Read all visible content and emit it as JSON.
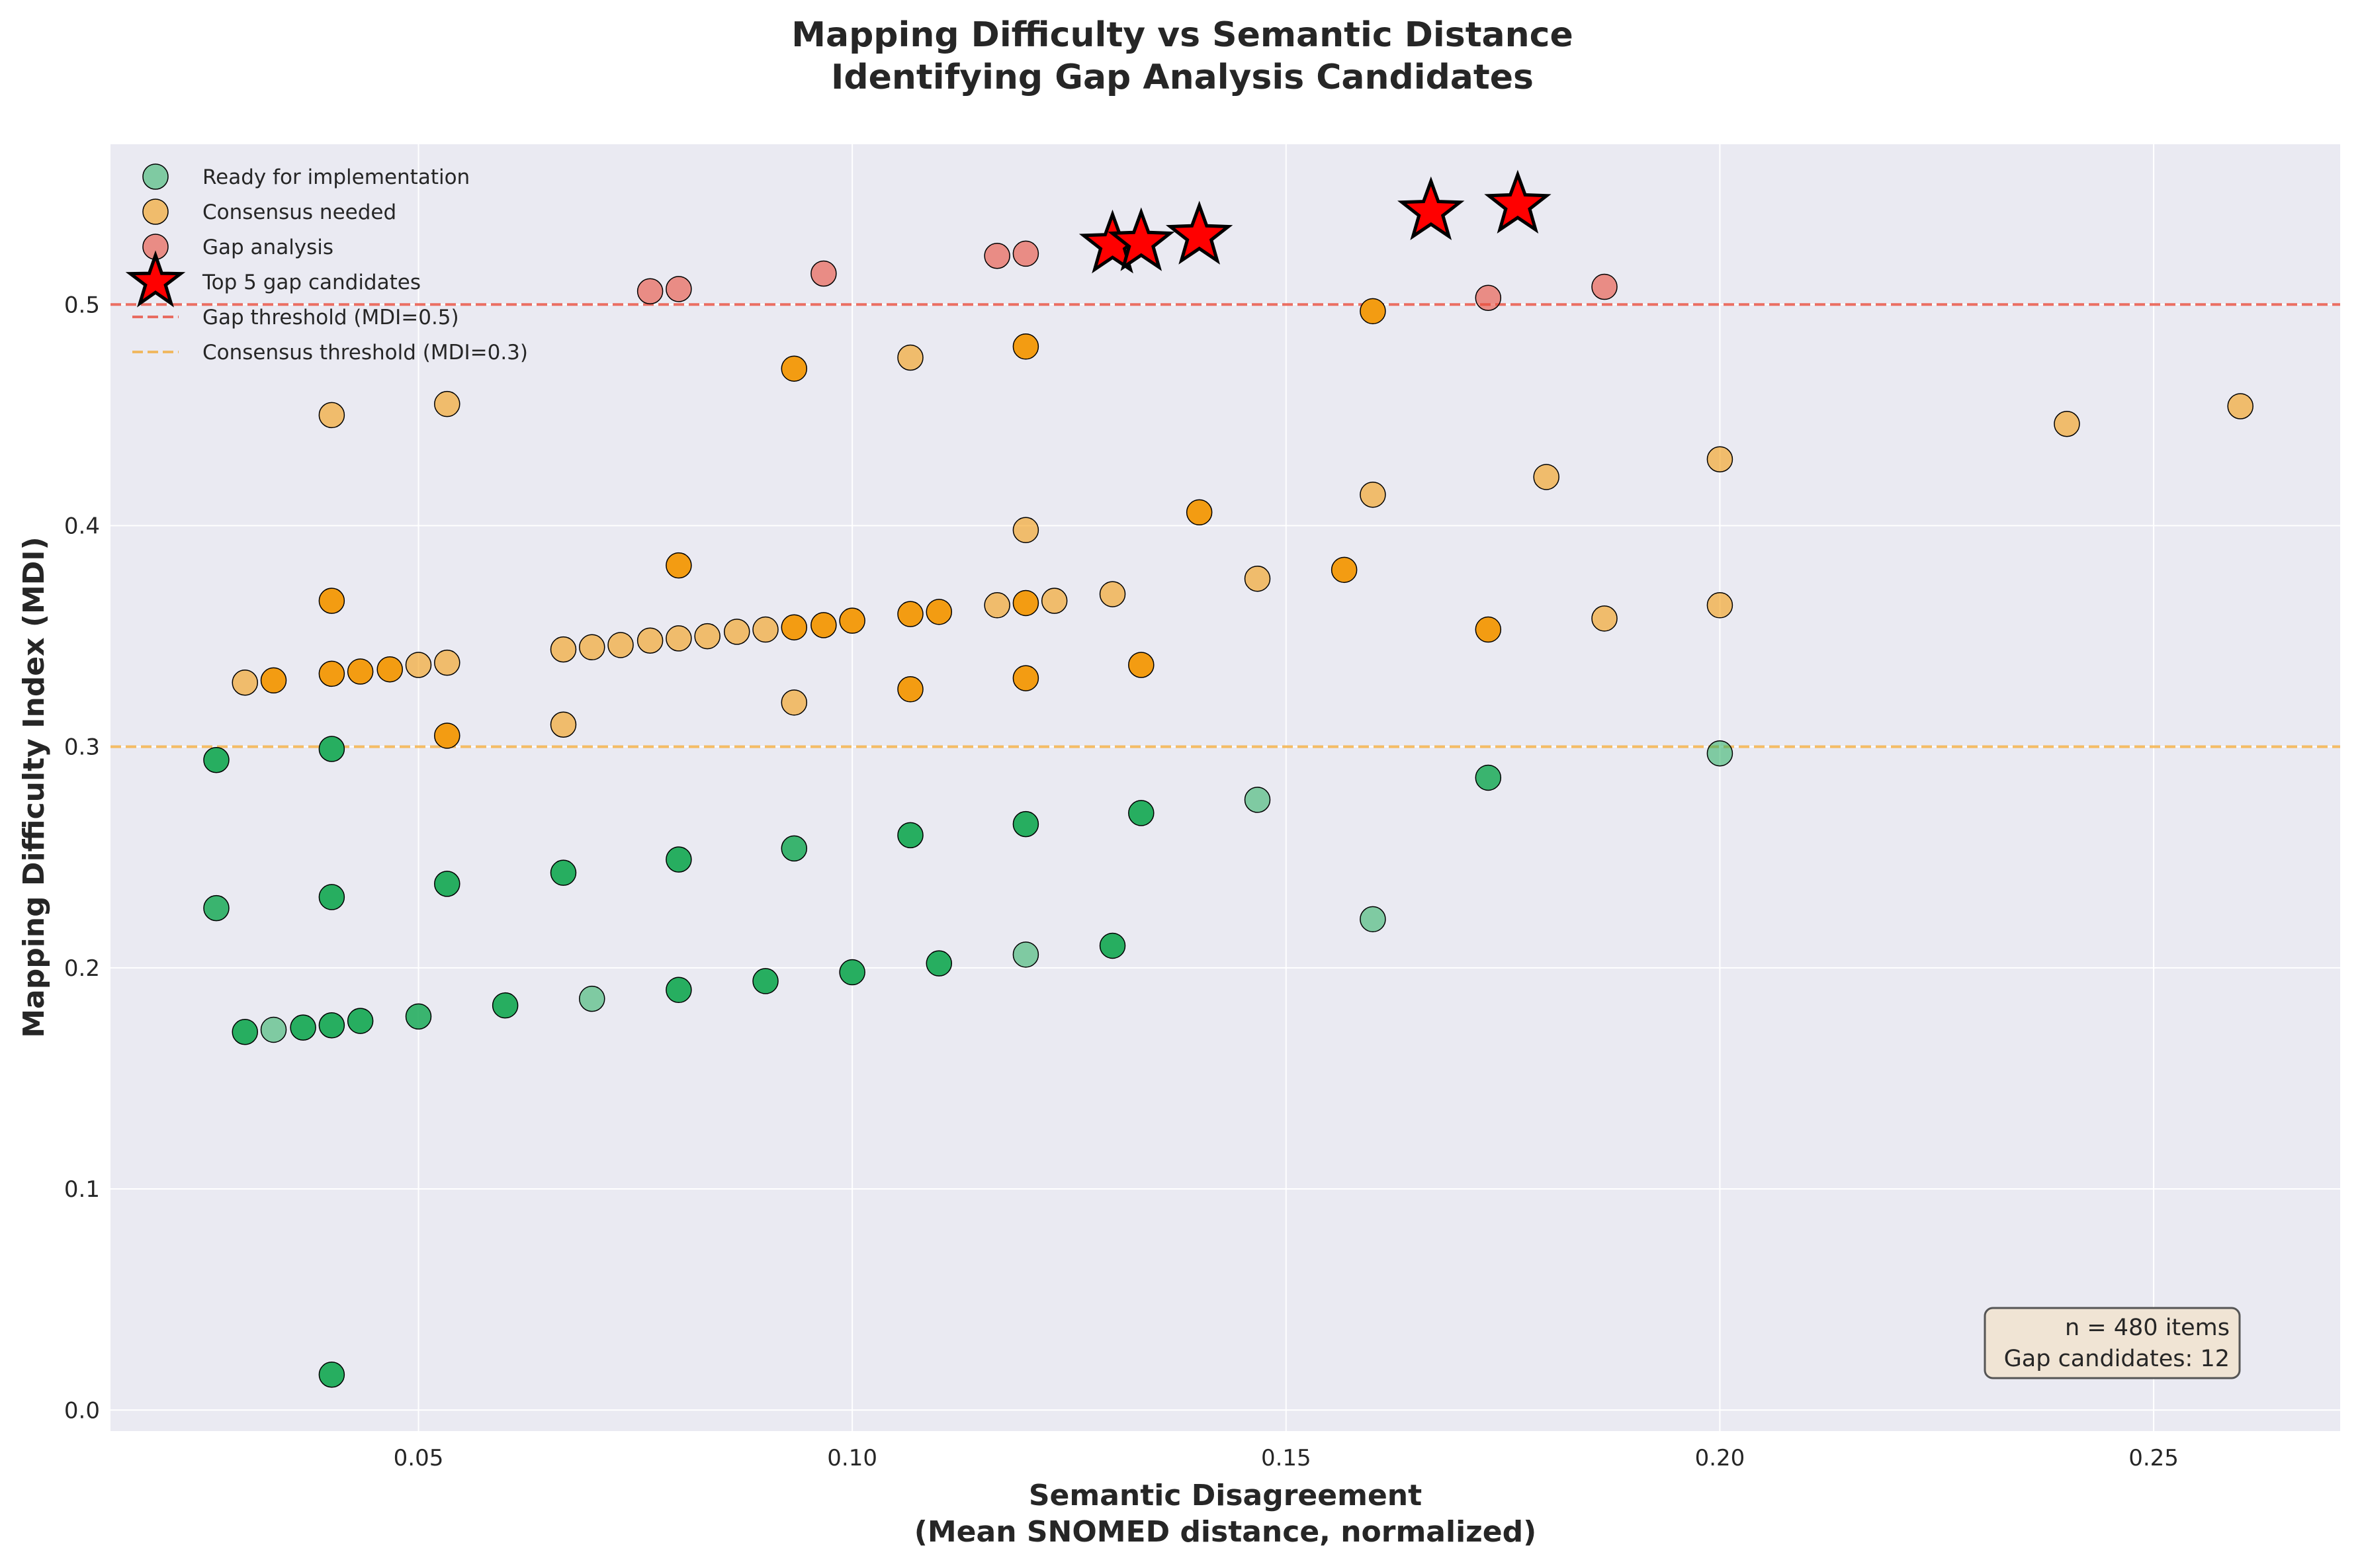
{
  "chart_data": {
    "type": "scatter",
    "title_lines": [
      "Mapping Difficulty vs Semantic Distance",
      "Identifying Gap Analysis Candidates"
    ],
    "xlabel_lines": [
      "Semantic Disagreement",
      "(Mean SNOMED distance, normalized)"
    ],
    "ylabel": "Mapping Difficulty Index (MDI)",
    "xlim": [
      0.0145,
      0.2715
    ],
    "ylim": [
      -0.0095,
      0.5725
    ],
    "xticks": [
      0.05,
      0.1,
      0.15,
      0.2,
      0.25
    ],
    "xtick_labels": [
      "0.05",
      "0.10",
      "0.15",
      "0.20",
      "0.25"
    ],
    "yticks": [
      0.0,
      0.1,
      0.2,
      0.3,
      0.4,
      0.5
    ],
    "ytick_labels": [
      "0.0",
      "0.1",
      "0.2",
      "0.3",
      "0.4",
      "0.5"
    ],
    "grid": true,
    "legend_position": "top-left",
    "colors": {
      "plot_bg": "#eaeaf2",
      "grid": "#ffffff",
      "ready": "#27ae60",
      "consensus": "#f39c12",
      "gap": "#e74c3c",
      "star": "#ff0000",
      "gap_line": "#e74c3c",
      "consensus_line": "#f39c12",
      "annot_bg": "#f0e4d4"
    },
    "reference_lines": [
      {
        "y": 0.5,
        "label": "Gap threshold (MDI=0.5)",
        "color": "#e74c3c"
      },
      {
        "y": 0.3,
        "label": "Consensus threshold (MDI=0.3)",
        "color": "#f39c12"
      }
    ],
    "series": [
      {
        "name": "Ready for implementation",
        "color": "#27ae60",
        "points": [
          [
            0.04,
            0.016,
            1
          ],
          [
            0.03,
            0.171,
            1
          ],
          [
            0.0333,
            0.172,
            0.55
          ],
          [
            0.0367,
            0.173,
            1
          ],
          [
            0.04,
            0.174,
            1
          ],
          [
            0.0433,
            0.176,
            1
          ],
          [
            0.05,
            0.178,
            0.9
          ],
          [
            0.06,
            0.183,
            1
          ],
          [
            0.07,
            0.186,
            0.55
          ],
          [
            0.08,
            0.19,
            1
          ],
          [
            0.09,
            0.194,
            1
          ],
          [
            0.1,
            0.198,
            1
          ],
          [
            0.11,
            0.202,
            1
          ],
          [
            0.12,
            0.206,
            0.55
          ],
          [
            0.13,
            0.21,
            1
          ],
          [
            0.16,
            0.222,
            0.55
          ],
          [
            0.0267,
            0.227,
            0.9
          ],
          [
            0.04,
            0.232,
            1
          ],
          [
            0.0533,
            0.238,
            1
          ],
          [
            0.0667,
            0.243,
            1
          ],
          [
            0.08,
            0.249,
            1
          ],
          [
            0.0933,
            0.254,
            0.9
          ],
          [
            0.1067,
            0.26,
            1
          ],
          [
            0.12,
            0.265,
            1
          ],
          [
            0.1333,
            0.27,
            1
          ],
          [
            0.1467,
            0.276,
            0.55
          ],
          [
            0.1733,
            0.286,
            0.9
          ],
          [
            0.0267,
            0.294,
            1
          ],
          [
            0.04,
            0.299,
            1
          ],
          [
            0.2,
            0.297,
            0.55
          ]
        ]
      },
      {
        "name": "Consensus needed",
        "color": "#f39c12",
        "points": [
          [
            0.0533,
            0.305,
            1
          ],
          [
            0.0667,
            0.31,
            0.6
          ],
          [
            0.0933,
            0.32,
            0.6
          ],
          [
            0.1067,
            0.326,
            1
          ],
          [
            0.12,
            0.331,
            1
          ],
          [
            0.03,
            0.329,
            0.6
          ],
          [
            0.0333,
            0.33,
            1
          ],
          [
            0.04,
            0.333,
            1
          ],
          [
            0.0433,
            0.334,
            1
          ],
          [
            0.0467,
            0.335,
            1
          ],
          [
            0.05,
            0.337,
            0.6
          ],
          [
            0.0533,
            0.338,
            0.6
          ],
          [
            0.1333,
            0.337,
            1
          ],
          [
            0.0667,
            0.344,
            0.6
          ],
          [
            0.07,
            0.345,
            0.6
          ],
          [
            0.0733,
            0.346,
            0.6
          ],
          [
            0.0767,
            0.348,
            0.6
          ],
          [
            0.08,
            0.349,
            0.6
          ],
          [
            0.0833,
            0.35,
            0.6
          ],
          [
            0.0867,
            0.352,
            0.6
          ],
          [
            0.09,
            0.353,
            0.6
          ],
          [
            0.0933,
            0.354,
            1
          ],
          [
            0.0967,
            0.355,
            1
          ],
          [
            0.1,
            0.357,
            1
          ],
          [
            0.1067,
            0.36,
            1
          ],
          [
            0.11,
            0.361,
            1
          ],
          [
            0.1167,
            0.364,
            0.6
          ],
          [
            0.12,
            0.365,
            1
          ],
          [
            0.1233,
            0.366,
            0.6
          ],
          [
            0.13,
            0.369,
            0.6
          ],
          [
            0.1733,
            0.353,
            1
          ],
          [
            0.1867,
            0.358,
            0.6
          ],
          [
            0.2,
            0.364,
            0.6
          ],
          [
            0.04,
            0.366,
            1
          ],
          [
            0.1467,
            0.376,
            0.6
          ],
          [
            0.1567,
            0.38,
            1
          ],
          [
            0.08,
            0.382,
            1
          ],
          [
            0.12,
            0.398,
            0.6
          ],
          [
            0.14,
            0.406,
            1
          ],
          [
            0.16,
            0.414,
            0.6
          ],
          [
            0.18,
            0.422,
            0.6
          ],
          [
            0.2,
            0.43,
            0.6
          ],
          [
            0.24,
            0.446,
            0.6
          ],
          [
            0.04,
            0.45,
            0.6
          ],
          [
            0.26,
            0.454,
            0.6
          ],
          [
            0.0533,
            0.455,
            0.6
          ],
          [
            0.0933,
            0.471,
            1
          ],
          [
            0.1067,
            0.476,
            0.6
          ],
          [
            0.12,
            0.481,
            1
          ],
          [
            0.16,
            0.497,
            1
          ]
        ]
      },
      {
        "name": "Gap analysis",
        "color": "#e74c3c",
        "points": [
          [
            0.0767,
            0.506,
            0.6
          ],
          [
            0.08,
            0.507,
            0.6
          ],
          [
            0.0967,
            0.514,
            0.6
          ],
          [
            0.1167,
            0.522,
            0.6
          ],
          [
            0.12,
            0.523,
            0.6
          ],
          [
            0.1733,
            0.503,
            0.6
          ],
          [
            0.1867,
            0.508,
            0.6
          ]
        ]
      },
      {
        "name": "Top 5 gap candidates",
        "color": "#ff0000",
        "marker": "star",
        "points": [
          [
            0.13,
            0.527,
            1
          ],
          [
            0.1333,
            0.528,
            1
          ],
          [
            0.14,
            0.531,
            1
          ],
          [
            0.1667,
            0.542,
            1
          ],
          [
            0.1767,
            0.545,
            1
          ]
        ]
      }
    ],
    "annotation_lines": [
      "n = 480 items",
      "Gap candidates: 12"
    ],
    "annotation_position": "bottom-right"
  }
}
